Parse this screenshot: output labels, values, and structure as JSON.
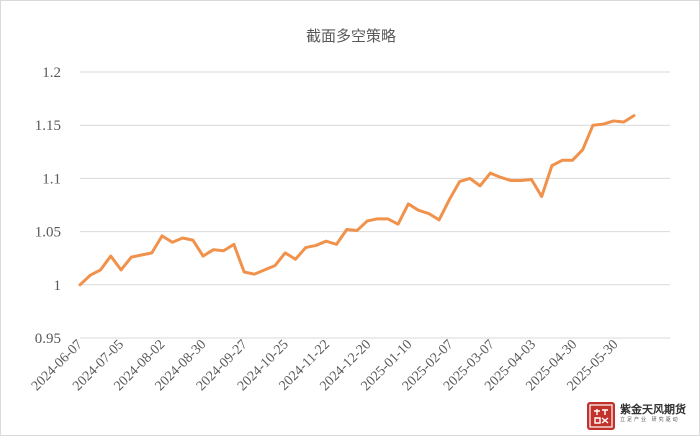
{
  "chart_data": {
    "type": "line",
    "title": "截面多空策略",
    "xlabel": "",
    "ylabel": "",
    "ylim": [
      0.95,
      1.2
    ],
    "yticks": [
      "0.95",
      "1",
      "1.05",
      "1.1",
      "1.15",
      "1.2"
    ],
    "xticks": [
      "2024-06-07",
      "2024-07-05",
      "2024-08-02",
      "2024-08-30",
      "2024-09-27",
      "2024-10-25",
      "2024-11-22",
      "2024-12-20",
      "2025-01-10",
      "2025-02-07",
      "2025-03-07",
      "2025-04-03",
      "2025-04-30",
      "2025-05-30"
    ],
    "grid": true,
    "legend": "none",
    "series": [
      {
        "color": "#f0924c",
        "values": [
          1.0,
          1.009,
          1.014,
          1.027,
          1.014,
          1.026,
          1.028,
          1.03,
          1.046,
          1.04,
          1.044,
          1.042,
          1.027,
          1.033,
          1.032,
          1.038,
          1.012,
          1.01,
          1.014,
          1.018,
          1.03,
          1.024,
          1.035,
          1.037,
          1.041,
          1.038,
          1.052,
          1.051,
          1.06,
          1.062,
          1.062,
          1.057,
          1.076,
          1.07,
          1.067,
          1.061,
          1.08,
          1.097,
          1.1,
          1.093,
          1.105,
          1.101,
          1.098,
          1.098,
          1.099,
          1.083,
          1.112,
          1.117,
          1.117,
          1.127,
          1.15,
          1.151,
          1.154,
          1.153,
          1.159
        ]
      }
    ]
  },
  "watermark": {
    "seal_text": "紫金天风",
    "name": "紫金天风期货",
    "tagline": "立足产业 研究驱动",
    "color": "#c0322b"
  }
}
